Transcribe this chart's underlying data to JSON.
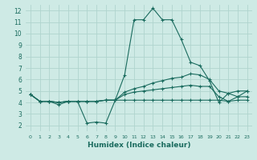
{
  "xlabel": "Humidex (Indice chaleur)",
  "bg_color": "#ceeae5",
  "line_color": "#1a6b5e",
  "grid_color": "#afd4ce",
  "xlim": [
    -0.5,
    23.5
  ],
  "ylim": [
    1.5,
    12.5
  ],
  "xticks": [
    0,
    1,
    2,
    3,
    4,
    5,
    6,
    7,
    8,
    9,
    10,
    11,
    12,
    13,
    14,
    15,
    16,
    17,
    18,
    19,
    20,
    21,
    22,
    23
  ],
  "yticks": [
    2,
    3,
    4,
    5,
    6,
    7,
    8,
    9,
    10,
    11,
    12
  ],
  "series": [
    {
      "x": [
        0,
        1,
        2,
        3,
        4,
        5,
        6,
        7,
        8,
        9,
        10,
        11,
        12,
        13,
        14,
        15,
        16,
        17,
        18,
        19,
        20,
        21,
        22,
        23
      ],
      "y": [
        4.7,
        4.1,
        4.1,
        3.8,
        4.1,
        4.1,
        2.2,
        2.3,
        2.2,
        4.2,
        6.4,
        11.2,
        11.2,
        12.2,
        11.2,
        11.2,
        9.5,
        7.5,
        7.2,
        5.9,
        4.0,
        4.8,
        4.5,
        5.0
      ]
    },
    {
      "x": [
        0,
        1,
        2,
        3,
        4,
        5,
        6,
        7,
        8,
        9,
        10,
        11,
        12,
        13,
        14,
        15,
        16,
        17,
        18,
        19,
        20,
        21,
        22,
        23
      ],
      "y": [
        4.7,
        4.1,
        4.1,
        4.0,
        4.1,
        4.1,
        4.1,
        4.1,
        4.2,
        4.2,
        4.9,
        5.2,
        5.4,
        5.7,
        5.9,
        6.1,
        6.2,
        6.5,
        6.4,
        6.0,
        5.0,
        4.8,
        5.0,
        5.0
      ]
    },
    {
      "x": [
        0,
        1,
        2,
        3,
        4,
        5,
        6,
        7,
        8,
        9,
        10,
        11,
        12,
        13,
        14,
        15,
        16,
        17,
        18,
        19,
        20,
        21,
        22,
        23
      ],
      "y": [
        4.7,
        4.1,
        4.1,
        4.0,
        4.1,
        4.1,
        4.1,
        4.1,
        4.2,
        4.2,
        4.7,
        4.9,
        5.0,
        5.1,
        5.2,
        5.3,
        5.4,
        5.5,
        5.4,
        5.4,
        4.5,
        4.1,
        4.5,
        4.5
      ]
    },
    {
      "x": [
        0,
        1,
        2,
        3,
        4,
        5,
        6,
        7,
        8,
        9,
        10,
        11,
        12,
        13,
        14,
        15,
        16,
        17,
        18,
        19,
        20,
        21,
        22,
        23
      ],
      "y": [
        4.7,
        4.1,
        4.1,
        4.0,
        4.1,
        4.1,
        4.1,
        4.1,
        4.2,
        4.2,
        4.2,
        4.2,
        4.2,
        4.2,
        4.2,
        4.2,
        4.2,
        4.2,
        4.2,
        4.2,
        4.2,
        4.1,
        4.2,
        4.2
      ]
    }
  ]
}
